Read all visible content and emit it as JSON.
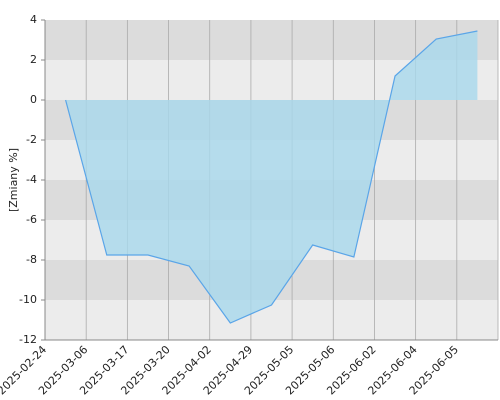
{
  "chart_data": {
    "type": "area",
    "y_label": "[Zmiany %]",
    "categories": [
      "2025-02-24",
      "2025-03-06",
      "2025-03-17",
      "2025-03-20",
      "2025-04-02",
      "2025-04-29",
      "2025-05-05",
      "2025-05-06",
      "2025-06-02",
      "2025-06-04",
      "2025-06-05"
    ],
    "values": [
      0,
      -7.75,
      -7.75,
      -8.3,
      -11.15,
      -10.25,
      -7.25,
      -7.85,
      1.2,
      3.05,
      3.45
    ],
    "color": "#5aa5e8",
    "fill": "#a8d8ec",
    "ylim": [
      -12,
      4
    ],
    "yticks": [
      -12,
      -10,
      -8,
      -6,
      -4,
      -2,
      0,
      2,
      4
    ],
    "grid": true
  }
}
